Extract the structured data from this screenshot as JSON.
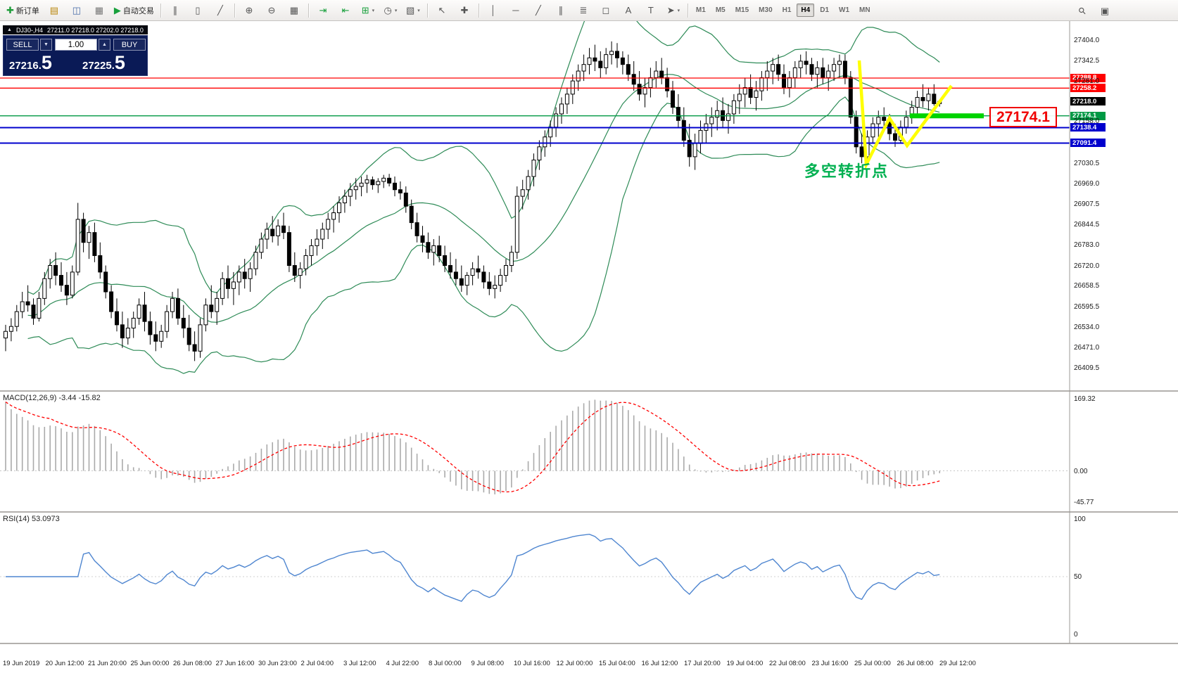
{
  "colors": {
    "band_green": "#2e8b57",
    "bull": "#ffffff",
    "bear": "#000000",
    "wick": "#000000",
    "level_red": "#ff0000",
    "level_blue": "#0000cd",
    "level_green": "#009944",
    "current_black": "#000000",
    "bright_green": "#00d300",
    "yellow": "#ffff00",
    "macd_hist": "#aaaaaa",
    "macd_signal": "#ff0000",
    "rsi_blue": "#4f86d0",
    "note_green": "#00b050"
  },
  "toolbar": {
    "buttons": [
      {
        "name": "new-order-button",
        "glyph": "✚",
        "glyph_color": "#1f9d3a",
        "label": "新订单",
        "group": 1
      },
      {
        "name": "market-watch-button",
        "glyph": "▤",
        "glyph_color": "#b8860b",
        "group": 1
      },
      {
        "name": "navigator-button",
        "glyph": "◫",
        "glyph_color": "#4a6ea9",
        "group": 1
      },
      {
        "name": "terminal-button",
        "glyph": "▦",
        "glyph_color": "#777777",
        "group": 1
      },
      {
        "name": "auto-trading-button",
        "glyph": "▶",
        "glyph_color": "#18a03c",
        "label": "自动交易",
        "group": 1
      },
      {
        "name": "bar-chart-button",
        "glyph": "∥",
        "group": 2
      },
      {
        "name": "candlestick-chart-button",
        "glyph": "▯",
        "group": 2
      },
      {
        "name": "line-chart-button",
        "glyph": "╱",
        "group": 2
      },
      {
        "name": "zoom-in-button",
        "glyph": "⊕",
        "group": 3
      },
      {
        "name": "zoom-out-button",
        "glyph": "⊖",
        "group": 3
      },
      {
        "name": "tile-windows-button",
        "glyph": "▦",
        "group": 3
      },
      {
        "name": "auto-scroll-button",
        "glyph": "⇥",
        "glyph_color": "#18a03c",
        "group": 4
      },
      {
        "name": "chart-shift-button",
        "glyph": "⇤",
        "glyph_color": "#18a03c",
        "group": 4
      },
      {
        "name": "indicators-button",
        "glyph": "⊞",
        "glyph_color": "#18a03c",
        "dropdown": true,
        "group": 4
      },
      {
        "name": "periods-button",
        "glyph": "◷",
        "dropdown": true,
        "group": 4
      },
      {
        "name": "templates-button",
        "glyph": "▧",
        "dropdown": true,
        "group": 4
      },
      {
        "name": "cursor-button",
        "glyph": "↖",
        "group": 5
      },
      {
        "name": "crosshair-button",
        "glyph": "✚",
        "group": 5
      },
      {
        "name": "vertical-line-button",
        "glyph": "│",
        "group": 6
      },
      {
        "name": "horizontal-line-button",
        "glyph": "─",
        "group": 6
      },
      {
        "name": "trendline-button",
        "glyph": "╱",
        "group": 6
      },
      {
        "name": "channel-button",
        "glyph": "∥",
        "group": 6
      },
      {
        "name": "fibonacci-button",
        "glyph": "≣",
        "group": 6
      },
      {
        "name": "shapes-button",
        "glyph": "◻",
        "group": 6
      },
      {
        "name": "text-button",
        "glyph": "A",
        "group": 6
      },
      {
        "name": "text-label-button",
        "glyph": "T",
        "group": 6
      },
      {
        "name": "arrows-button",
        "glyph": "➤",
        "dropdown": true,
        "group": 6
      }
    ],
    "timeframes": [
      "M1",
      "M5",
      "M15",
      "M30",
      "H1",
      "H4",
      "D1",
      "W1",
      "MN"
    ],
    "active_timeframe": "H4",
    "right_buttons": [
      {
        "name": "search-button",
        "glyph": "⚲",
        "rotate": true
      },
      {
        "name": "toolbox-button",
        "glyph": "▣"
      }
    ]
  },
  "trade_panel": {
    "sell_label": "SELL",
    "buy_label": "BUY",
    "volume": "1.00",
    "sell_price_main": "27216.",
    "sell_price_big": "5",
    "buy_price_main": "27225.",
    "buy_price_big": "5",
    "spin_down": "▼",
    "spin_up": "▲"
  },
  "annotations": {
    "turning_point": "多空转折点",
    "price_callout": "27174.1"
  },
  "chart_data": {
    "type": "candlestick",
    "header": {
      "symbol_tf": "DJ30-,H4",
      "ohlc": "27211.0 27218.0 27202.0 27218.0"
    },
    "overlays": [
      "Bollinger Bands (green)"
    ],
    "levels": [
      {
        "value": 27288.8,
        "label": "27288.8",
        "color": "#ff0000",
        "width": 1.3,
        "kind": "resistance"
      },
      {
        "value": 27258.2,
        "label": "27258.2",
        "color": "#ff0000",
        "width": 1.3,
        "kind": "resistance"
      },
      {
        "value": 27218.0,
        "label": "27218.0",
        "color": "#000000",
        "width": 0,
        "kind": "current-price"
      },
      {
        "value": 27174.1,
        "label": "27174.1",
        "color": "#009944",
        "width": 1.4,
        "kind": "entry"
      },
      {
        "value": 27138.4,
        "label": "27138.4",
        "color": "#0000cd",
        "width": 2,
        "kind": "support"
      },
      {
        "value": 27091.4,
        "label": "27091.4",
        "color": "#0000cd",
        "width": 2,
        "kind": "support"
      }
    ],
    "price_ticks": [
      "27404.0",
      "27342.5",
      "27281.0",
      "27158.0",
      "27030.5",
      "26969.0",
      "26907.5",
      "26844.5",
      "26783.0",
      "26720.0",
      "26658.5",
      "26595.5",
      "26534.0",
      "26471.0",
      "26409.5"
    ],
    "time_labels": [
      "19 Jun 2019",
      "20 Jun 12:00",
      "21 Jun 20:00",
      "25 Jun 00:00",
      "26 Jun 08:00",
      "27 Jun 16:00",
      "30 Jun 23:00",
      "2 Jul 04:00",
      "3 Jul 12:00",
      "4 Jul 22:00",
      "8 Jul 00:00",
      "9 Jul 08:00",
      "10 Jul 16:00",
      "12 Jul 00:00",
      "15 Jul 04:00",
      "16 Jul 12:00",
      "17 Jul 20:00",
      "19 Jul 04:00",
      "22 Jul 08:00",
      "23 Jul 16:00",
      "25 Jul 00:00",
      "26 Jul 08:00",
      "29 Jul 12:00"
    ],
    "indicators": {
      "macd": {
        "label": "MACD(12,26,9) -3.44 -15.82",
        "ticks": [
          "169.32",
          "0.00",
          "-45.77"
        ]
      },
      "rsi": {
        "label": "RSI(14) 53.0973",
        "ticks": [
          "100",
          "50",
          "0"
        ]
      }
    },
    "candles": [
      [
        26500,
        26540,
        26460,
        26520
      ],
      [
        26520,
        26560,
        26490,
        26535
      ],
      [
        26535,
        26600,
        26520,
        26580
      ],
      [
        26580,
        26640,
        26560,
        26610
      ],
      [
        26610,
        26660,
        26580,
        26600
      ],
      [
        26600,
        26620,
        26540,
        26560
      ],
      [
        26560,
        26640,
        26550,
        26620
      ],
      [
        26620,
        26700,
        26600,
        26680
      ],
      [
        26680,
        26740,
        26650,
        26720
      ],
      [
        26720,
        26760,
        26660,
        26690
      ],
      [
        26690,
        26730,
        26640,
        26660
      ],
      [
        26660,
        26700,
        26600,
        26630
      ],
      [
        26630,
        26720,
        26620,
        26700
      ],
      [
        26700,
        26910,
        26690,
        26860
      ],
      [
        26860,
        26880,
        26760,
        26790
      ],
      [
        26790,
        26840,
        26740,
        26820
      ],
      [
        26820,
        26850,
        26730,
        26750
      ],
      [
        26750,
        26790,
        26680,
        26700
      ],
      [
        26700,
        26720,
        26620,
        26640
      ],
      [
        26640,
        26660,
        26560,
        26580
      ],
      [
        26580,
        26620,
        26520,
        26540
      ],
      [
        26540,
        26580,
        26470,
        26500
      ],
      [
        26500,
        26560,
        26480,
        26530
      ],
      [
        26530,
        26580,
        26500,
        26560
      ],
      [
        26560,
        26620,
        26540,
        26600
      ],
      [
        26600,
        26640,
        26520,
        26550
      ],
      [
        26550,
        26580,
        26480,
        26510
      ],
      [
        26510,
        26550,
        26460,
        26490
      ],
      [
        26490,
        26540,
        26470,
        26520
      ],
      [
        26520,
        26600,
        26500,
        26580
      ],
      [
        26580,
        26640,
        26560,
        26620
      ],
      [
        26620,
        26650,
        26540,
        26560
      ],
      [
        26560,
        26600,
        26500,
        26530
      ],
      [
        26530,
        26570,
        26460,
        26480
      ],
      [
        26480,
        26520,
        26430,
        26460
      ],
      [
        26460,
        26560,
        26440,
        26540
      ],
      [
        26540,
        26620,
        26520,
        26600
      ],
      [
        26600,
        26660,
        26560,
        26580
      ],
      [
        26580,
        26640,
        26540,
        26620
      ],
      [
        26620,
        26700,
        26600,
        26680
      ],
      [
        26680,
        26720,
        26620,
        26650
      ],
      [
        26650,
        26700,
        26600,
        26670
      ],
      [
        26670,
        26720,
        26630,
        26700
      ],
      [
        26700,
        26740,
        26650,
        26680
      ],
      [
        26680,
        26730,
        26640,
        26710
      ],
      [
        26710,
        26780,
        26690,
        26760
      ],
      [
        26760,
        26820,
        26740,
        26800
      ],
      [
        26800,
        26850,
        26770,
        26830
      ],
      [
        26830,
        26870,
        26790,
        26810
      ],
      [
        26810,
        26860,
        26780,
        26840
      ],
      [
        26840,
        26880,
        26800,
        26820
      ],
      [
        26820,
        26840,
        26700,
        26720
      ],
      [
        26720,
        26760,
        26670,
        26690
      ],
      [
        26690,
        26730,
        26650,
        26710
      ],
      [
        26710,
        26770,
        26690,
        26750
      ],
      [
        26750,
        26800,
        26720,
        26780
      ],
      [
        26780,
        26830,
        26750,
        26800
      ],
      [
        26800,
        26850,
        26770,
        26830
      ],
      [
        26830,
        26880,
        26800,
        26860
      ],
      [
        26860,
        26900,
        26820,
        26880
      ],
      [
        26880,
        26930,
        26850,
        26910
      ],
      [
        26910,
        26950,
        26880,
        26930
      ],
      [
        26930,
        26970,
        26900,
        26950
      ],
      [
        26950,
        26985,
        26920,
        26960
      ],
      [
        26960,
        26990,
        26930,
        26970
      ],
      [
        26970,
        26995,
        26940,
        26980
      ],
      [
        26980,
        26990,
        26950,
        26965
      ],
      [
        26965,
        26985,
        26940,
        26975
      ],
      [
        26975,
        26995,
        26955,
        26985
      ],
      [
        26985,
        26998,
        26960,
        26970
      ],
      [
        26970,
        26990,
        26930,
        26950
      ],
      [
        26950,
        26975,
        26920,
        26940
      ],
      [
        26940,
        26960,
        26880,
        26900
      ],
      [
        26900,
        26920,
        26830,
        26850
      ],
      [
        26850,
        26880,
        26790,
        26810
      ],
      [
        26810,
        26840,
        26760,
        26790
      ],
      [
        26790,
        26820,
        26740,
        26760
      ],
      [
        26760,
        26800,
        26720,
        26780
      ],
      [
        26780,
        26810,
        26730,
        26750
      ],
      [
        26750,
        26780,
        26700,
        26720
      ],
      [
        26720,
        26760,
        26680,
        26700
      ],
      [
        26700,
        26740,
        26660,
        26680
      ],
      [
        26680,
        26720,
        26640,
        26660
      ],
      [
        26660,
        26700,
        26630,
        26690
      ],
      [
        26690,
        26730,
        26660,
        26710
      ],
      [
        26710,
        26750,
        26680,
        26700
      ],
      [
        26700,
        26720,
        26650,
        26670
      ],
      [
        26670,
        26700,
        26630,
        26650
      ],
      [
        26650,
        26690,
        26620,
        26660
      ],
      [
        26660,
        26710,
        26640,
        26690
      ],
      [
        26690,
        26740,
        26670,
        26720
      ],
      [
        26720,
        26780,
        26700,
        26760
      ],
      [
        26760,
        26960,
        26740,
        26930
      ],
      [
        26930,
        26980,
        26890,
        26950
      ],
      [
        26950,
        27010,
        26920,
        26990
      ],
      [
        26990,
        27060,
        26960,
        27040
      ],
      [
        27040,
        27100,
        27010,
        27080
      ],
      [
        27080,
        27130,
        27050,
        27110
      ],
      [
        27110,
        27160,
        27080,
        27140
      ],
      [
        27140,
        27200,
        27110,
        27180
      ],
      [
        27180,
        27230,
        27150,
        27210
      ],
      [
        27210,
        27260,
        27180,
        27240
      ],
      [
        27240,
        27300,
        27210,
        27280
      ],
      [
        27280,
        27330,
        27250,
        27310
      ],
      [
        27310,
        27360,
        27280,
        27330
      ],
      [
        27330,
        27380,
        27300,
        27350
      ],
      [
        27350,
        27390,
        27310,
        27340
      ],
      [
        27340,
        27370,
        27290,
        27320
      ],
      [
        27320,
        27380,
        27300,
        27360
      ],
      [
        27360,
        27400,
        27330,
        27370
      ],
      [
        27370,
        27395,
        27320,
        27350
      ],
      [
        27350,
        27370,
        27300,
        27330
      ],
      [
        27330,
        27360,
        27280,
        27300
      ],
      [
        27300,
        27340,
        27250,
        27270
      ],
      [
        27270,
        27310,
        27220,
        27240
      ],
      [
        27240,
        27290,
        27200,
        27260
      ],
      [
        27260,
        27320,
        27230,
        27290
      ],
      [
        27290,
        27340,
        27260,
        27310
      ],
      [
        27310,
        27350,
        27270,
        27290
      ],
      [
        27290,
        27320,
        27230,
        27250
      ],
      [
        27250,
        27280,
        27180,
        27200
      ],
      [
        27200,
        27240,
        27140,
        27160
      ],
      [
        27160,
        27200,
        27080,
        27100
      ],
      [
        27100,
        27150,
        27020,
        27050
      ],
      [
        27050,
        27120,
        27010,
        27090
      ],
      [
        27090,
        27160,
        27060,
        27130
      ],
      [
        27130,
        27180,
        27090,
        27150
      ],
      [
        27150,
        27200,
        27110,
        27170
      ],
      [
        27170,
        27220,
        27130,
        27190
      ],
      [
        27190,
        27230,
        27140,
        27160
      ],
      [
        27160,
        27210,
        27120,
        27180
      ],
      [
        27180,
        27240,
        27150,
        27220
      ],
      [
        27220,
        27270,
        27180,
        27240
      ],
      [
        27240,
        27290,
        27200,
        27260
      ],
      [
        27260,
        27300,
        27210,
        27230
      ],
      [
        27230,
        27280,
        27190,
        27250
      ],
      [
        27250,
        27310,
        27220,
        27290
      ],
      [
        27290,
        27340,
        27250,
        27310
      ],
      [
        27310,
        27350,
        27270,
        27330
      ],
      [
        27330,
        27360,
        27280,
        27300
      ],
      [
        27300,
        27330,
        27240,
        27260
      ],
      [
        27260,
        27310,
        27230,
        27290
      ],
      [
        27290,
        27340,
        27260,
        27320
      ],
      [
        27320,
        27360,
        27290,
        27340
      ],
      [
        27340,
        27370,
        27300,
        27330
      ],
      [
        27330,
        27350,
        27280,
        27300
      ],
      [
        27300,
        27340,
        27260,
        27320
      ],
      [
        27320,
        27350,
        27270,
        27290
      ],
      [
        27290,
        27330,
        27250,
        27310
      ],
      [
        27310,
        27350,
        27280,
        27330
      ],
      [
        27330,
        27360,
        27290,
        27340
      ],
      [
        27340,
        27360,
        27270,
        27290
      ],
      [
        27290,
        27310,
        27150,
        27170
      ],
      [
        27170,
        27190,
        27060,
        27080
      ],
      [
        27080,
        27120,
        27030,
        27050
      ],
      [
        27050,
        27130,
        27040,
        27110
      ],
      [
        27110,
        27170,
        27090,
        27150
      ],
      [
        27150,
        27190,
        27110,
        27170
      ],
      [
        27170,
        27200,
        27130,
        27160
      ],
      [
        27160,
        27180,
        27100,
        27120
      ],
      [
        27120,
        27150,
        27080,
        27100
      ],
      [
        27100,
        27160,
        27090,
        27140
      ],
      [
        27140,
        27190,
        27120,
        27170
      ],
      [
        27170,
        27220,
        27150,
        27200
      ],
      [
        27200,
        27250,
        27180,
        27230
      ],
      [
        27230,
        27270,
        27200,
        27220
      ],
      [
        27220,
        27260,
        27190,
        27240
      ],
      [
        27240,
        27270,
        27205,
        27211
      ],
      [
        27211,
        27218,
        27202,
        27218
      ]
    ]
  }
}
